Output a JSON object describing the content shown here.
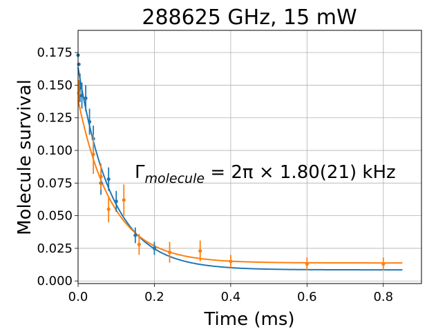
{
  "chart_data": {
    "type": "scatter",
    "title": "288625 GHz, 15 mW",
    "xlabel": "Time (ms)",
    "ylabel": "Molecule survival",
    "xlim": [
      0,
      0.9
    ],
    "ylim": [
      -0.002,
      0.192
    ],
    "x_ticks": [
      0.0,
      0.2,
      0.4,
      0.6,
      0.8
    ],
    "x_tick_labels": [
      "0.0",
      "0.2",
      "0.4",
      "0.6",
      "0.8"
    ],
    "y_ticks": [
      0.0,
      0.025,
      0.05,
      0.075,
      0.1,
      0.125,
      0.15,
      0.175
    ],
    "y_tick_labels": [
      "0.000",
      "0.025",
      "0.050",
      "0.075",
      "0.100",
      "0.125",
      "0.150",
      "0.175"
    ],
    "grid": true,
    "annotation": {
      "prefix": "Γ",
      "subscript": "molecule",
      "expression": " = 2π × 1.80(21) kHz"
    },
    "series": [
      {
        "color": "#1f77b4",
        "points": [
          {
            "x": 0.0,
            "y": 0.173,
            "err": 0.0
          },
          {
            "x": 0.002,
            "y": 0.166,
            "err": 0.0
          },
          {
            "x": 0.005,
            "y": 0.148,
            "err": 0.011
          },
          {
            "x": 0.01,
            "y": 0.142,
            "err": 0.01
          },
          {
            "x": 0.02,
            "y": 0.14,
            "err": 0.01
          },
          {
            "x": 0.03,
            "y": 0.122,
            "err": 0.01
          },
          {
            "x": 0.04,
            "y": 0.109,
            "err": 0.01
          },
          {
            "x": 0.06,
            "y": 0.075,
            "err": 0.009
          },
          {
            "x": 0.08,
            "y": 0.078,
            "err": 0.009
          },
          {
            "x": 0.1,
            "y": 0.061,
            "err": 0.008
          },
          {
            "x": 0.15,
            "y": 0.035,
            "err": 0.006
          },
          {
            "x": 0.2,
            "y": 0.025,
            "err": 0.005
          }
        ],
        "fit": {
          "amplitude": 0.155,
          "rate_per_ms": 11.3,
          "offset": 0.0085,
          "x_start": 0.0,
          "x_end": 0.85
        }
      },
      {
        "color": "#ff7f0e",
        "points": [
          {
            "x": 0.002,
            "y": 0.144,
            "err": 0.01
          },
          {
            "x": 0.04,
            "y": 0.097,
            "err": 0.015
          },
          {
            "x": 0.06,
            "y": 0.08,
            "err": 0.01
          },
          {
            "x": 0.08,
            "y": 0.055,
            "err": 0.01
          },
          {
            "x": 0.12,
            "y": 0.062,
            "err": 0.012
          },
          {
            "x": 0.16,
            "y": 0.028,
            "err": 0.008
          },
          {
            "x": 0.24,
            "y": 0.022,
            "err": 0.008
          },
          {
            "x": 0.32,
            "y": 0.023,
            "err": 0.008
          },
          {
            "x": 0.4,
            "y": 0.015,
            "err": 0.005
          },
          {
            "x": 0.6,
            "y": 0.013,
            "err": 0.005
          },
          {
            "x": 0.8,
            "y": 0.013,
            "err": 0.005
          }
        ],
        "fit": {
          "amplitude": 0.125,
          "rate_per_ms": 11.3,
          "offset": 0.0138,
          "x_start": 0.0,
          "x_end": 0.85
        }
      }
    ]
  }
}
